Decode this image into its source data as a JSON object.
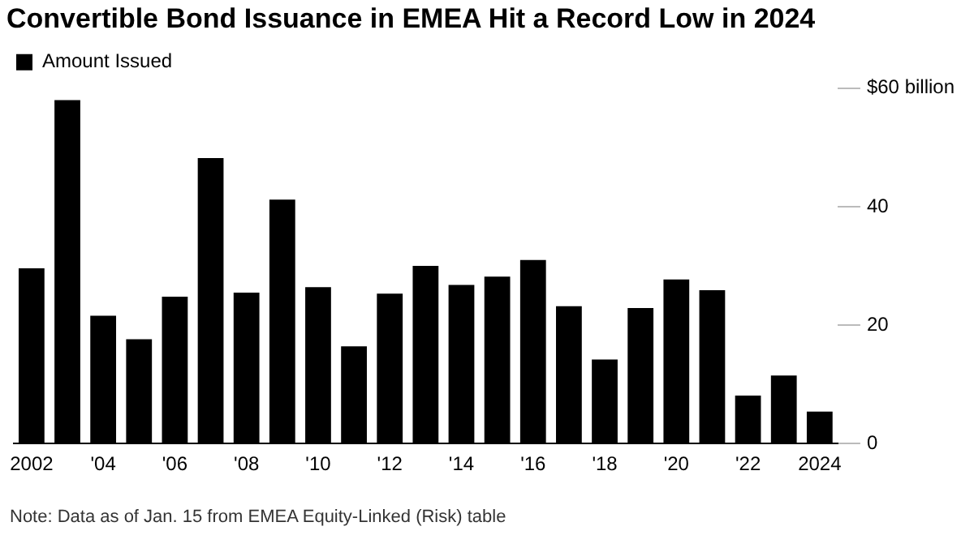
{
  "chart_data": {
    "type": "bar",
    "title": "Convertible Bond Issuance in EMEA Hit a Record Low in 2024",
    "categories": [
      "2002",
      null,
      "'04",
      null,
      "'06",
      null,
      "'08",
      null,
      "'10",
      null,
      "'12",
      null,
      "'14",
      null,
      "'16",
      null,
      "'18",
      null,
      "'20",
      null,
      "'22",
      null,
      "2024"
    ],
    "series": [
      {
        "name": "Amount Issued",
        "color": "#000000",
        "values": [
          29.6,
          58,
          21.6,
          17.6,
          24.8,
          48.2,
          25.5,
          41.2,
          26.4,
          16.4,
          25.3,
          30,
          26.8,
          28.2,
          31,
          23.2,
          14.2,
          22.9,
          27.7,
          25.9,
          8.1,
          11.5,
          5.4
        ]
      }
    ],
    "ylim": [
      0,
      60
    ],
    "yticks": [
      0,
      20,
      40,
      {
        "value": 60,
        "label": "$60 billion"
      }
    ],
    "grid": false,
    "legend": "top left",
    "annotations": [
      "Note: Data as of Jan. 15 from EMEA Equity-Linked (Risk) table"
    ]
  }
}
